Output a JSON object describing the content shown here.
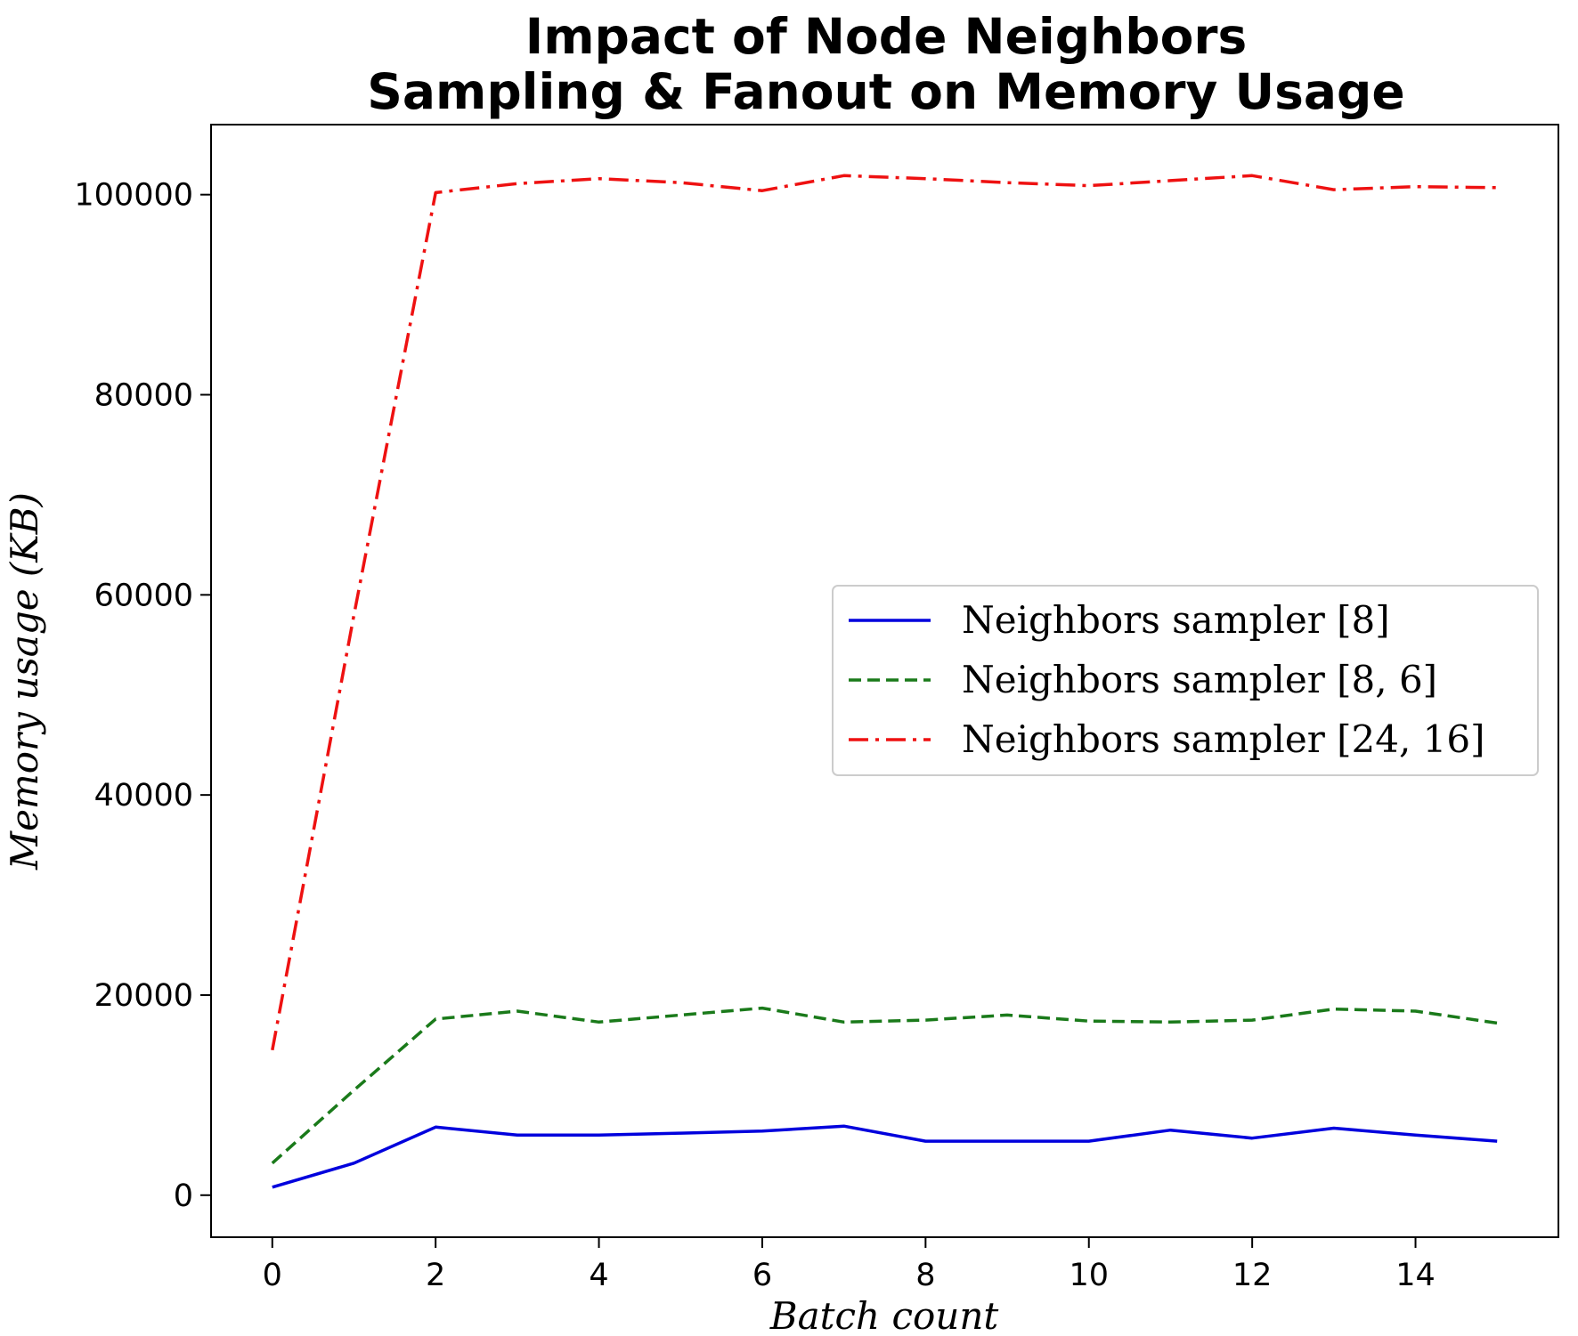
{
  "chart_data": {
    "type": "line",
    "title_lines": [
      "Impact of Node Neighbors",
      "Sampling & Fanout on Memory Usage"
    ],
    "xlabel": "Batch count",
    "ylabel": "Memory usage (KB)",
    "xlim": [
      -0.75,
      15.75
    ],
    "ylim": [
      -4200,
      107000
    ],
    "x_ticks": [
      0,
      2,
      4,
      6,
      8,
      10,
      12,
      14
    ],
    "y_ticks": [
      0,
      20000,
      40000,
      60000,
      80000,
      100000
    ],
    "x": [
      0,
      1,
      2,
      3,
      4,
      5,
      6,
      7,
      8,
      9,
      10,
      11,
      12,
      13,
      14,
      15
    ],
    "grid": false,
    "legend_position": "center-right",
    "series": [
      {
        "name": "Neighbors sampler [8]",
        "color": "#0000dd",
        "line_style": "solid",
        "values": [
          800,
          3200,
          6800,
          6000,
          6000,
          6200,
          6400,
          6900,
          5400,
          5400,
          5400,
          6500,
          5700,
          6700,
          6000,
          5400
        ]
      },
      {
        "name": "Neighbors sampler [8, 6]",
        "color": "#1a7a1a",
        "line_style": "dashed",
        "values": [
          3200,
          10500,
          17600,
          18400,
          17300,
          18000,
          18700,
          17300,
          17500,
          18000,
          17400,
          17300,
          17500,
          18600,
          18400,
          17200
        ]
      },
      {
        "name": "Neighbors sampler [24, 16]",
        "color": "#ee1111",
        "line_style": "dashdot",
        "values": [
          14500,
          58000,
          100200,
          101100,
          101600,
          101200,
          100400,
          101900,
          101600,
          101200,
          100900,
          101400,
          101900,
          100500,
          100800,
          100700
        ]
      }
    ]
  }
}
